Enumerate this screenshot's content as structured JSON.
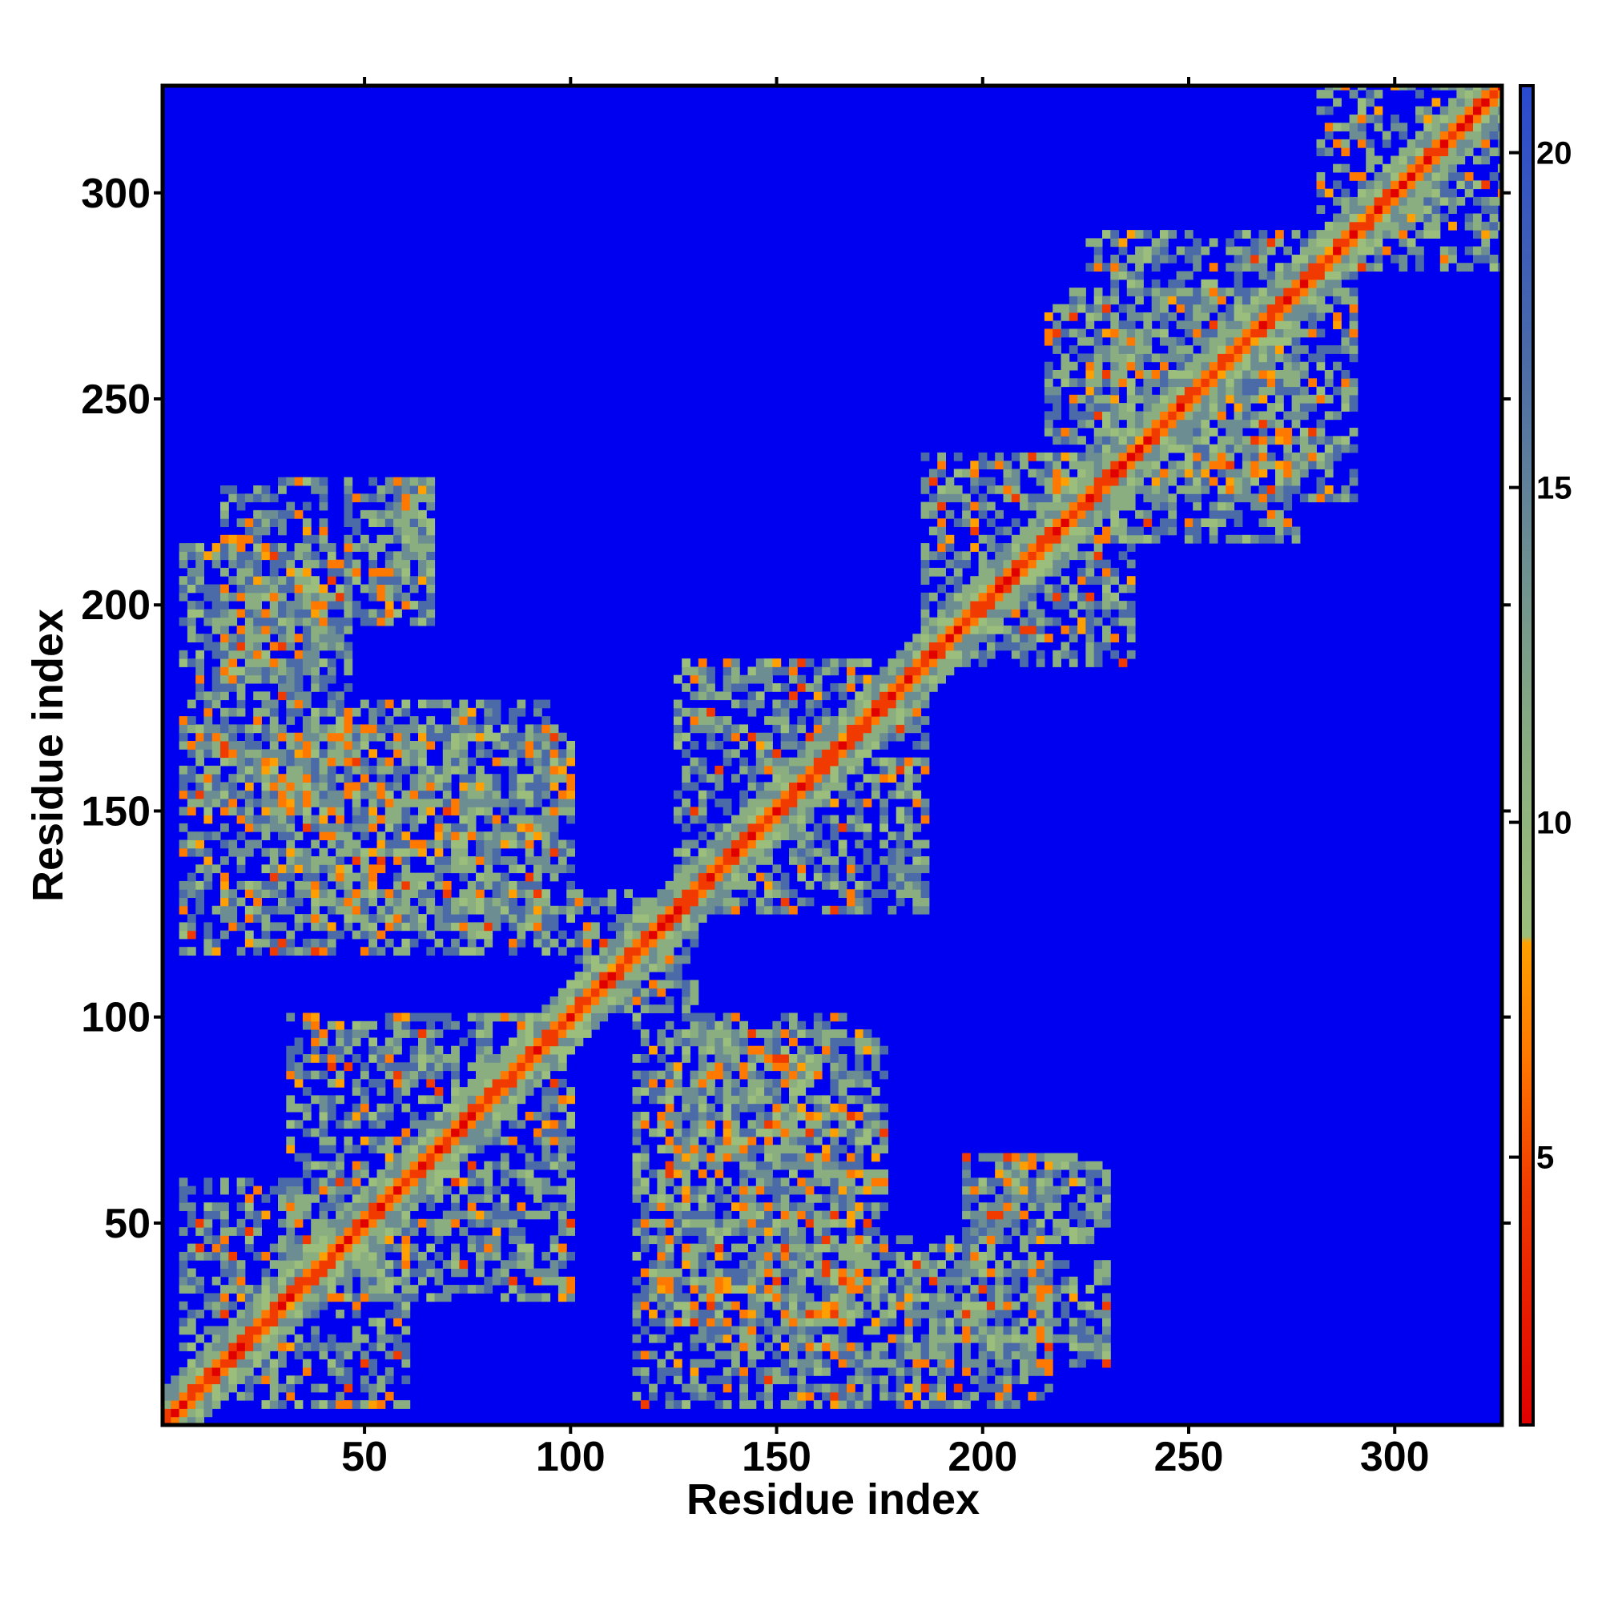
{
  "chart_data": {
    "type": "heatmap",
    "title": "",
    "xlabel": "Residue index",
    "ylabel": "Residue index",
    "xlim": [
      1,
      326
    ],
    "ylim": [
      1,
      326
    ],
    "xticks": [
      50,
      100,
      150,
      200,
      250,
      300
    ],
    "yticks": [
      50,
      100,
      150,
      200,
      250,
      300
    ],
    "colorbar": {
      "range": [
        1,
        21
      ],
      "ticks": [
        5,
        10,
        15,
        20
      ],
      "background_color": "#0000f0",
      "stops": [
        {
          "value": 1,
          "color": "#e00000"
        },
        {
          "value": 4.5,
          "color": "#f03a00"
        },
        {
          "value": 6.5,
          "color": "#ff7800"
        },
        {
          "value": 8.2,
          "color": "#ffa000"
        },
        {
          "value": 8.3,
          "color": "#9cbe7c"
        },
        {
          "value": 11,
          "color": "#8aae80"
        },
        {
          "value": 14,
          "color": "#6c8e92"
        },
        {
          "value": 17,
          "color": "#4a6aa8"
        },
        {
          "value": 21,
          "color": "#2a4ad0"
        }
      ]
    },
    "description_of_values": "Inter-residue distance map; low values (red) along the diagonal, contact blocks (orange/green) off-diagonal, background (blue) beyond cutoff.",
    "diagonal": {
      "from": 1,
      "to": 326
    },
    "contact_regions": [
      {
        "x": [
          5,
          60
        ],
        "y": [
          5,
          60
        ]
      },
      {
        "x": [
          30,
          100
        ],
        "y": [
          30,
          100
        ]
      },
      {
        "x": [
          100,
          130
        ],
        "y": [
          100,
          130
        ]
      },
      {
        "x": [
          125,
          185
        ],
        "y": [
          125,
          185
        ]
      },
      {
        "x": [
          185,
          235
        ],
        "y": [
          185,
          235
        ]
      },
      {
        "x": [
          225,
          290
        ],
        "y": [
          225,
          290
        ]
      },
      {
        "x": [
          280,
          326
        ],
        "y": [
          280,
          326
        ]
      },
      {
        "x": [
          5,
          45
        ],
        "y": [
          150,
          215
        ]
      },
      {
        "x": [
          25,
          95
        ],
        "y": [
          120,
          175
        ]
      },
      {
        "x": [
          45,
          65
        ],
        "y": [
          195,
          230
        ]
      },
      {
        "x": [
          115,
          170
        ],
        "y": [
          5,
          100
        ]
      },
      {
        "x": [
          180,
          230
        ],
        "y": [
          15,
          40
        ]
      },
      {
        "x": [
          195,
          230
        ],
        "y": [
          50,
          65
        ]
      },
      {
        "x": [
          215,
          275
        ],
        "y": [
          215,
          275
        ]
      }
    ]
  }
}
